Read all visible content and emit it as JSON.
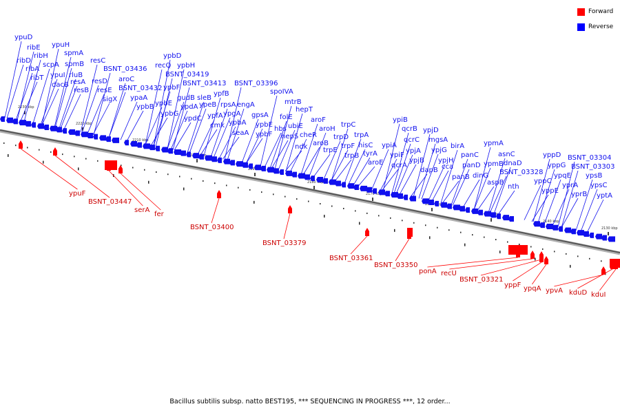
{
  "legend": [
    {
      "label": "Forward",
      "color": "#ff0000"
    },
    {
      "label": "Reverse",
      "color": "#0000ff"
    }
  ],
  "caption": "Bacillus subtilis subsp. natto BEST195, *** SEQUENCING IN PROGRESS ***, 12 order...",
  "colors": {
    "forward": "#ff0000",
    "reverse": "#1010ee",
    "backbone": "#555555"
  },
  "ticks": [
    "2230 kbp",
    "2220 kbp",
    "2210 kbp",
    "2200 kbp",
    "2190 kbp",
    "2180 kbp",
    "2170 kbp",
    "2160 kbp",
    "2150 kbp",
    "2140 kbp",
    "2130 kbp"
  ],
  "reverse_genes": [
    "ypuD",
    "ribE",
    "ribH",
    "ribD",
    "ribA",
    "ribT",
    "ypuH",
    "scpA",
    "spmA",
    "spmB",
    "ypuI",
    "dacB",
    "rluB",
    "resA",
    "resB",
    "resC",
    "resD",
    "resE",
    "BSNT_03436",
    "aroC",
    "BSNT_03432",
    "sigX",
    "ypbD",
    "recQ",
    "ypbH",
    "BSNT_03419",
    "ypaA",
    "ypbB",
    "ypbF",
    "ypbE",
    "ypbG",
    "gudB",
    "ypdA",
    "sleB",
    "ypeB",
    "BSNT_03413",
    "ypdC",
    "ypfB",
    "ypfA",
    "cmk",
    "rpsA",
    "ypgA",
    "ypbA",
    "BSNT_03396",
    "engA",
    "seaA",
    "gpsA",
    "spoIVA",
    "ypbE",
    "ypbF",
    "mtrB",
    "hbs",
    "folE",
    "hepT",
    "ubiE",
    "hepS",
    "cheR",
    "aroF",
    "ndk",
    "aroH",
    "aroB",
    "trpC",
    "trpD",
    "trpE",
    "trpF",
    "trpB",
    "trpA",
    "hisC",
    "tyrA",
    "aroE",
    "ypiB",
    "ypiA",
    "ypiF",
    "qcrB",
    "qcrC",
    "qcrA",
    "ypjA",
    "ypjB",
    "ypjD",
    "mgsA",
    "ypjG",
    "ypjH",
    "dapB",
    "cca",
    "birA",
    "panC",
    "panD",
    "panB",
    "dinG",
    "ypmA",
    "asnC",
    "ypmB",
    "dnaD",
    "BSNT_03328",
    "aspB",
    "nth",
    "yppD",
    "yppG",
    "yppC",
    "yppE",
    "ypqE",
    "yprA",
    "BSNT_03304",
    "BSNT_03303",
    "ypsB",
    "yprB",
    "ypsC",
    "yptA"
  ],
  "forward_genes": [
    "ypuF",
    "BSNT_03447",
    "serA",
    "fer",
    "BSNT_03400",
    "BSNT_03379",
    "BSNT_03361",
    "BSNT_03350",
    "ponA",
    "recU",
    "BSNT_03321",
    "yppF",
    "ypqA",
    "ypvA",
    "kduD",
    "kduI"
  ]
}
